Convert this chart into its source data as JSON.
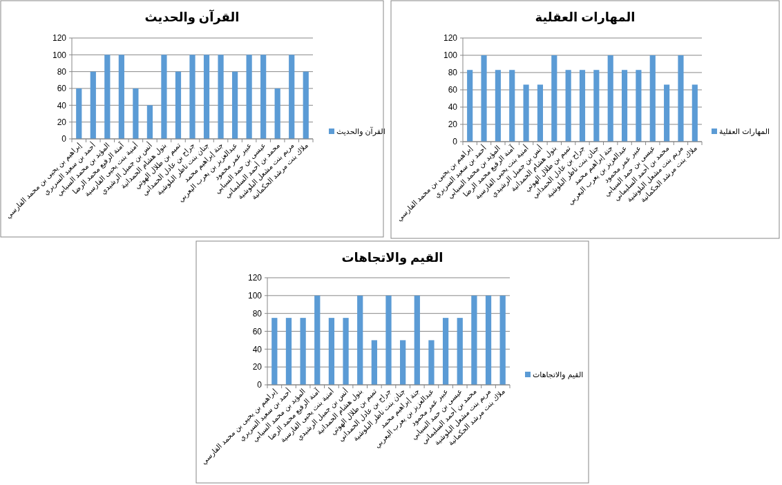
{
  "chart_data": [
    {
      "type": "bar",
      "title": "القرآن والحديث",
      "categories": [
        "إبراهيم بن يحيى بن محمد الفارسي",
        "أحمد بن سعيد السريري",
        "المؤيد بن محمد السيابي",
        "آمنة الرفيع محمد الرضا",
        "أمنية بنت يحيى الفارسية",
        "أنس بن جميل الرشيدي",
        "بتول هشام الحمدانية",
        "تميم بن طلال الهوتي",
        "جراح بن عادل الحمداني",
        "جنان بنت ناظر البلوشية",
        "جنة إبراهيم محمد",
        "عبدالعزيز بن يعرب اليعربي",
        "عبير عمر محمود",
        "عيسى بن حمد السيابي",
        "محمد بن أحمد السليماني",
        "مريم بنت مشعل البلوشية",
        "ملاك بنت مرشد الحكمانية"
      ],
      "series": [
        {
          "name": "القرآن والحديث",
          "color": "#5b9bd5",
          "values": [
            60,
            80,
            100,
            100,
            60,
            40,
            100,
            80,
            100,
            100,
            100,
            80,
            100,
            100,
            60,
            100,
            80
          ]
        }
      ],
      "ylim": [
        0,
        120
      ],
      "yticks": [
        0,
        20,
        40,
        60,
        80,
        100,
        120
      ],
      "grid": "y",
      "legend": "right"
    },
    {
      "type": "bar",
      "title": "المهارات العقلية",
      "categories": [
        "إبراهيم بن يحيى بن محمد الفارسي",
        "أحمد بن سعيد السريري",
        "المؤيد بن محمد السيابي",
        "آمنة الرفيع محمد الرضا",
        "أمنية بنت يحيى الفارسية",
        "أنس بن جميل الرشيدي",
        "بتول هشام الحمدانية",
        "تميم بن طلال الهوتي",
        "جراح بن عادل الحمداني",
        "جنان بنت ناظر البلوشية",
        "جنة إبراهيم محمد",
        "عبدالعزيز بن يعرب اليعربي",
        "عبير عمر محمود",
        "عيسى بن حمد السيابي",
        "محمد بن أحمد السليماني",
        "مريم بنت مشعل البلوشية",
        "ملاك بنت مرشد الحكمانية"
      ],
      "series": [
        {
          "name": "المهارات العقلية",
          "color": "#5b9bd5",
          "values": [
            83,
            100,
            83,
            83,
            66,
            66,
            100,
            83,
            83,
            83,
            100,
            83,
            83,
            100,
            66,
            100,
            66
          ]
        }
      ],
      "ylim": [
        0,
        120
      ],
      "yticks": [
        0,
        20,
        40,
        60,
        80,
        100,
        120
      ],
      "grid": "y",
      "legend": "right"
    },
    {
      "type": "bar",
      "title": "القيم والاتجاهات",
      "categories": [
        "إبراهيم بن يحيى بن محمد الفارسي",
        "أحمد بن سعيد السريري",
        "المؤيد بن محمد السيابي",
        "آمنة الرفيع محمد الرضا",
        "أمنية بنت يحيى الفارسية",
        "أنس بن جميل الرشيدي",
        "بتول هشام الحمدانية",
        "تميم بن طلال الهوتي",
        "جراح بن عادل الحمداني",
        "جنان بنت ناظر البلوشية",
        "جنة إبراهيم محمد",
        "عبدالعزيز بن يعرب اليعربي",
        "عبير عمر محمود",
        "عيسى بن حمد السيابي",
        "محمد بن أحمد السليماني",
        "مريم بنت مشعل البلوشية",
        "ملاك بنت مرشد الحكمانية"
      ],
      "series": [
        {
          "name": "القيم والاتجاهات",
          "color": "#5b9bd5",
          "values": [
            75,
            75,
            75,
            100,
            75,
            75,
            100,
            50,
            100,
            50,
            100,
            50,
            75,
            75,
            100,
            100,
            100
          ]
        }
      ],
      "ylim": [
        0,
        120
      ],
      "yticks": [
        0,
        20,
        40,
        60,
        80,
        100,
        120
      ],
      "grid": "y",
      "legend": "right"
    }
  ]
}
